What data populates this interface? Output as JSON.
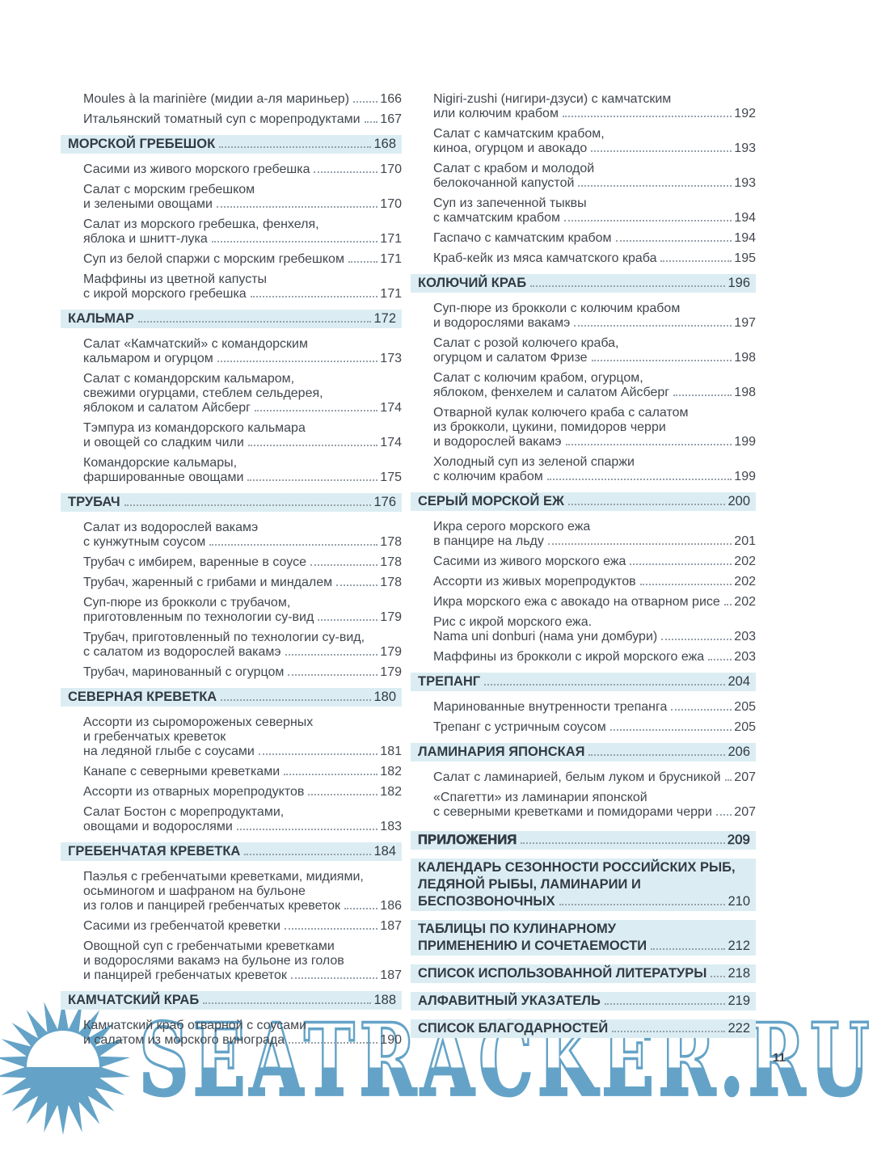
{
  "page": {
    "number": "11",
    "watermark_text": "SEATRACKER.RU"
  },
  "colors": {
    "section_band": "#dbedf2",
    "header_text": "#333a43",
    "body_text": "#41474e",
    "leader_dots": "#98a1a9",
    "watermark_blue": "#64a3c7"
  },
  "columns": {
    "left": [
      {
        "type": "entry",
        "lines": [
          "Moules à la marinière (мидии а-ля мариньер)"
        ],
        "page": "166"
      },
      {
        "type": "entry",
        "lines": [
          "Итальянский томатный суп с морепродуктами"
        ],
        "page": "167"
      },
      {
        "type": "header",
        "lines": [
          "МОРСКОЙ ГРЕБЕШОК"
        ],
        "page": "168"
      },
      {
        "type": "entry",
        "lines": [
          "Сасими из живого морского гребешка"
        ],
        "page": "170"
      },
      {
        "type": "entry",
        "lines": [
          "Салат с морским гребешком",
          "и зелеными овощами"
        ],
        "page": "170"
      },
      {
        "type": "entry",
        "lines": [
          "Салат из морского гребешка, фенхеля,",
          "яблока и шнитт-лука"
        ],
        "page": "171"
      },
      {
        "type": "entry",
        "lines": [
          "Суп из белой спаржи с морским гребешком"
        ],
        "page": "171"
      },
      {
        "type": "entry",
        "lines": [
          "Маффины из цветной капусты",
          "с икрой морского гребешка"
        ],
        "page": "171"
      },
      {
        "type": "header",
        "lines": [
          "КАЛЬМАР"
        ],
        "page": "172"
      },
      {
        "type": "entry",
        "lines": [
          "Салат «Камчатский» с командорским",
          "кальмаром и огурцом"
        ],
        "page": "173"
      },
      {
        "type": "entry",
        "lines": [
          "Салат с командорским кальмаром,",
          "свежими огурцами, стеблем сельдерея,",
          "яблоком и салатом Айсберг"
        ],
        "page": "174"
      },
      {
        "type": "entry",
        "lines": [
          "Тэмпура из командорского кальмара",
          "и овощей со сладким чили"
        ],
        "page": "174"
      },
      {
        "type": "entry",
        "lines": [
          "Командорские кальмары,",
          "фаршированные овощами"
        ],
        "page": "175"
      },
      {
        "type": "header",
        "lines": [
          "ТРУБАЧ"
        ],
        "page": "176"
      },
      {
        "type": "entry",
        "lines": [
          "Салат из водорослей вакамэ",
          "с кунжутным соусом"
        ],
        "page": "178"
      },
      {
        "type": "entry",
        "lines": [
          "Трубач с имбирем, варенные в соусе"
        ],
        "page": "178"
      },
      {
        "type": "entry",
        "lines": [
          "Трубач, жаренный с грибами и миндалем"
        ],
        "page": "178"
      },
      {
        "type": "entry",
        "lines": [
          "Суп-пюре из брокколи с трубачом,",
          "приготовленным по технологии су-вид"
        ],
        "page": "179"
      },
      {
        "type": "entry",
        "lines": [
          "Трубач, приготовленный по технологии су-вид,",
          "с салатом из водорослей вакамэ"
        ],
        "page": "179"
      },
      {
        "type": "entry",
        "lines": [
          "Трубач, маринованный с огурцом"
        ],
        "page": "179"
      },
      {
        "type": "header",
        "lines": [
          "СЕВЕРНАЯ КРЕВЕТКА"
        ],
        "page": "180"
      },
      {
        "type": "entry",
        "lines": [
          "Ассорти из сыромороженых северных",
          "и гребенчатых креветок",
          "на ледяной глыбе с соусами"
        ],
        "page": "181"
      },
      {
        "type": "entry",
        "lines": [
          "Канапе с северными креветками"
        ],
        "page": "182"
      },
      {
        "type": "entry",
        "lines": [
          "Ассорти из отварных морепродуктов"
        ],
        "page": "182"
      },
      {
        "type": "entry",
        "lines": [
          "Салат Бостон с морепродуктами,",
          "овощами и водорослями"
        ],
        "page": "183"
      },
      {
        "type": "header",
        "lines": [
          "ГРЕБЕНЧАТАЯ КРЕВЕТКА"
        ],
        "page": "184"
      },
      {
        "type": "entry",
        "lines": [
          "Паэлья с гребенчатыми креветками, мидиями,",
          "осьминогом и шафраном на бульоне",
          "из голов и панцирей гребенчатых креветок"
        ],
        "page": "186"
      },
      {
        "type": "entry",
        "lines": [
          "Сасими из гребенчатой креветки"
        ],
        "page": "187"
      },
      {
        "type": "entry",
        "lines": [
          "Овощной суп с гребенчатыми креветками",
          "и водорослями вакамэ на бульоне из голов",
          "и панцирей гребенчатых креветок"
        ],
        "page": "187"
      },
      {
        "type": "header",
        "lines": [
          "КАМЧАТСКИЙ КРАБ"
        ],
        "page": "188"
      },
      {
        "type": "entry",
        "lines": [
          "Камчатский краб отварной с соусами",
          "и салатом из морского винограда"
        ],
        "page": "190"
      }
    ],
    "right": [
      {
        "type": "entry",
        "lines": [
          "Nigiri-zushi (нигири-дзуси) с камчатским",
          "или колючим крабом"
        ],
        "page": "192"
      },
      {
        "type": "entry",
        "lines": [
          "Салат с камчатским крабом,",
          "киноа, огурцом и авокадо"
        ],
        "page": "193"
      },
      {
        "type": "entry",
        "lines": [
          "Салат с крабом и молодой",
          "белокочанной капустой"
        ],
        "page": "193"
      },
      {
        "type": "entry",
        "lines": [
          "Суп из запеченной тыквы",
          "с камчатским крабом"
        ],
        "page": "194"
      },
      {
        "type": "entry",
        "lines": [
          "Гаспачо с камчатским крабом"
        ],
        "page": "194"
      },
      {
        "type": "entry",
        "lines": [
          "Краб-кейк из мяса камчатского краба"
        ],
        "page": "195"
      },
      {
        "type": "header",
        "lines": [
          "КОЛЮЧИЙ КРАБ"
        ],
        "page": "196"
      },
      {
        "type": "entry",
        "lines": [
          "Суп-пюре из брокколи с колючим крабом",
          "и водорослями вакамэ"
        ],
        "page": "197"
      },
      {
        "type": "entry",
        "lines": [
          "Салат с розой колючего краба,",
          "огурцом и салатом Фризе"
        ],
        "page": "198"
      },
      {
        "type": "entry",
        "lines": [
          "Салат с колючим крабом, огурцом,",
          "яблоком, фенхелем и салатом Айсберг"
        ],
        "page": "198"
      },
      {
        "type": "entry",
        "lines": [
          "Отварной кулак колючего краба с салатом",
          "из брокколи, цукини, помидоров черри",
          "и водорослей вакамэ"
        ],
        "page": "199"
      },
      {
        "type": "entry",
        "lines": [
          "Холодный суп из зеленой спаржи",
          "с колючим крабом"
        ],
        "page": "199"
      },
      {
        "type": "header",
        "lines": [
          "СЕРЫЙ МОРСКОЙ ЕЖ"
        ],
        "page": "200"
      },
      {
        "type": "entry",
        "lines": [
          "Икра серого морского ежа",
          "в панцире на льду"
        ],
        "page": "201"
      },
      {
        "type": "entry",
        "lines": [
          "Сасими из живого морского ежа"
        ],
        "page": "202"
      },
      {
        "type": "entry",
        "lines": [
          "Ассорти из живых морепродуктов"
        ],
        "page": "202"
      },
      {
        "type": "entry",
        "lines": [
          "Икра морского ежа с авокадо на отварном рисе"
        ],
        "page": "202"
      },
      {
        "type": "entry",
        "lines": [
          "Рис с икрой морского ежа.",
          "Nama uni donburi (нама уни домбури)"
        ],
        "page": "203"
      },
      {
        "type": "entry",
        "lines": [
          "Маффины из брокколи с икрой морского ежа"
        ],
        "page": "203"
      },
      {
        "type": "header",
        "lines": [
          "ТРЕПАНГ"
        ],
        "page": "204"
      },
      {
        "type": "entry",
        "lines": [
          "Маринованные внутренности трепанга"
        ],
        "page": "205"
      },
      {
        "type": "entry",
        "lines": [
          "Трепанг с устричным соусом"
        ],
        "page": "205"
      },
      {
        "type": "header",
        "lines": [
          "ЛАМИНАРИЯ ЯПОНСКАЯ"
        ],
        "page": "206"
      },
      {
        "type": "entry",
        "lines": [
          "Салат с ламинарией, белым луком и брусникой"
        ],
        "page": "207"
      },
      {
        "type": "entry",
        "lines": [
          "«Спагетти» из ламинарии японской",
          "с северными креветками и помидорами черри"
        ],
        "page": "207"
      },
      {
        "type": "header2",
        "lines": [
          "ПРИЛОЖЕНИЯ"
        ],
        "page": "209"
      },
      {
        "type": "header",
        "lines": [
          "КАЛЕНДАРЬ СЕЗОННОСТИ РОССИЙСКИХ РЫБ,",
          "ЛЕДЯНОЙ РЫБЫ, ЛАМИНАРИИ И",
          "БЕСПОЗВОНОЧНЫХ"
        ],
        "page": "210"
      },
      {
        "type": "header",
        "lines": [
          "ТАБЛИЦЫ ПО КУЛИНАРНОМУ",
          "ПРИМЕНЕНИЮ И СОЧЕТАЕМОСТИ"
        ],
        "page": "212"
      },
      {
        "type": "header",
        "lines": [
          "СПИСОК ИСПОЛЬЗОВАННОЙ ЛИТЕРАТУРЫ"
        ],
        "page": "218"
      },
      {
        "type": "header",
        "lines": [
          "АЛФАВИТНЫЙ УКАЗАТЕЛЬ"
        ],
        "page": "219"
      },
      {
        "type": "header",
        "lines": [
          "СПИСОК БЛАГОДАРНОСТЕЙ"
        ],
        "page": "222"
      }
    ]
  }
}
